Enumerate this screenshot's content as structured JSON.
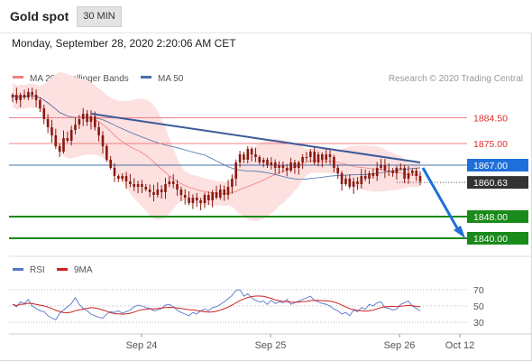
{
  "header": {
    "title": "Gold spot",
    "timeframe": "30 MIN"
  },
  "timestamp": "Monday, September 28, 2020 2:20:06 AM CET",
  "legend": {
    "ma": "MA 20 + Bollinger Bands",
    "ma50": "MA 50",
    "credit": "Research © 2020 Trading Central"
  },
  "rsi_legend": {
    "rsi": "RSI",
    "ma": "9MA"
  },
  "colors": {
    "candle": "#8a1a10",
    "bollinger_fill": "#fde0e0",
    "ma20": "#f08080",
    "ma50": "#4a6fa8",
    "trend": "#3a5a9a",
    "resistance": "#f08080",
    "support": "#1a8a1a",
    "current": "#1e6fd9",
    "last": "#333333",
    "rsi": "#5577cc",
    "rsi_ma": "#cc2222"
  },
  "chart_data": {
    "type": "candlestick",
    "instrument": "Gold spot",
    "interval": "30 MIN",
    "ylim": [
      1834,
      1896
    ],
    "x_ticks": [
      "Sep 24",
      "Sep 25",
      "Sep 26",
      "Oct 12"
    ],
    "closes": [
      1893,
      1891,
      1893,
      1892,
      1894,
      1893,
      1891,
      1888,
      1884,
      1881,
      1878,
      1874,
      1872,
      1877,
      1876,
      1880,
      1882,
      1884,
      1886,
      1883,
      1885,
      1881,
      1878,
      1874,
      1869,
      1866,
      1863,
      1862,
      1863,
      1861,
      1860,
      1859,
      1860,
      1859,
      1858,
      1857,
      1856,
      1858,
      1857,
      1860,
      1861,
      1860,
      1858,
      1856,
      1855,
      1853,
      1855,
      1854,
      1853,
      1856,
      1854,
      1857,
      1855,
      1858,
      1856,
      1859,
      1862,
      1868,
      1871,
      1869,
      1873,
      1871,
      1870,
      1868,
      1869,
      1867,
      1868,
      1866,
      1867,
      1866,
      1865,
      1868,
      1866,
      1868,
      1870,
      1870,
      1872,
      1868,
      1871,
      1869,
      1871,
      1870,
      1866,
      1864,
      1860,
      1862,
      1859,
      1861,
      1860,
      1863,
      1862,
      1864,
      1863,
      1866,
      1867,
      1865,
      1865,
      1864,
      1866,
      1866,
      1862,
      1864,
      1865,
      1863,
      1861
    ],
    "current_price": "1867.00",
    "last_price": "1860.63",
    "resistances": [
      "1884.50",
      "1875.00"
    ],
    "supports": [
      "1848.00",
      "1840.00"
    ],
    "trendline": [
      {
        "start": "Sep 23",
        "end": "Sep 26"
      }
    ],
    "projection": "down toward 1840.00",
    "rsi_levels": [
      70,
      50,
      30
    ],
    "rsi": [
      52,
      49,
      55,
      53,
      58,
      50,
      47,
      44,
      43,
      38,
      35,
      33,
      41,
      45,
      49,
      53,
      60,
      52,
      47,
      44,
      40,
      38,
      36,
      35,
      40,
      43,
      42,
      44,
      41,
      43,
      45,
      49,
      51,
      50,
      48,
      47,
      44,
      45,
      47,
      51,
      52,
      49,
      45,
      42,
      40,
      38,
      42,
      40,
      44,
      46,
      44,
      48,
      49,
      52,
      55,
      59,
      63,
      69,
      70,
      62,
      65,
      60,
      57,
      55,
      56,
      52,
      57,
      53,
      55,
      54,
      58,
      52,
      54,
      56,
      58,
      60,
      62,
      57,
      55,
      53,
      52,
      50,
      46,
      44,
      40,
      42,
      38,
      45,
      43,
      48,
      46,
      52,
      50,
      54,
      55,
      48,
      47,
      45,
      46,
      52,
      54,
      56,
      50,
      47,
      44
    ]
  }
}
